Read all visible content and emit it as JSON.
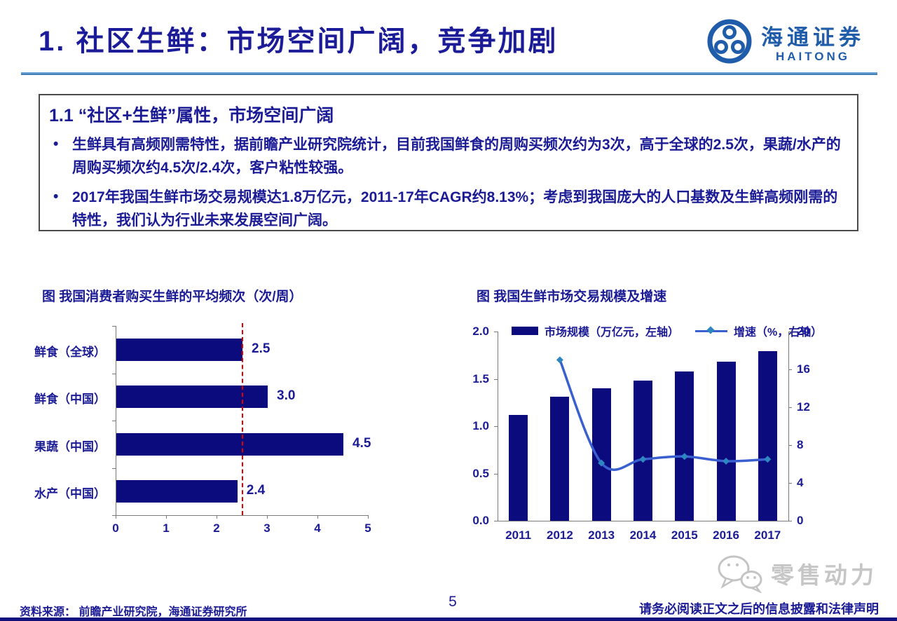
{
  "header": {
    "title": "1. 社区生鲜：市场空间广阔，竞争加剧",
    "logo": {
      "cn": "海通证券",
      "en": "HAITONG"
    }
  },
  "summary_box": {
    "heading": "1.1 “社区+生鲜”属性，市场空间广阔",
    "bullets": [
      "生鲜具有高频刚需特性，据前瞻产业研究院统计，目前我国鲜食的周购买频次约为3次，高于全球的2.5次，果蔬/水产的周购买频次约4.5次/2.4次，客户粘性较强。",
      "2017年我国生鲜市场交易规模达1.8万亿元，2011-17年CAGR约8.13%；考虑到我国庞大的人口基数及生鲜高频刚需的特性，我们认为行业未来发展空间广阔。"
    ]
  },
  "chart_data": [
    {
      "type": "bar",
      "orientation": "horizontal",
      "title": "图  我国消费者购买生鲜的平均频次（次/周）",
      "categories": [
        "鲜食（全球）",
        "鲜食（中国）",
        "果蔬（中国）",
        "水产（中国）"
      ],
      "values": [
        2.5,
        3.0,
        4.5,
        2.4
      ],
      "xlim": [
        0,
        5
      ],
      "xticks": [
        0,
        1,
        2,
        3,
        4,
        5
      ],
      "refline": {
        "value": 2.5,
        "color": "#E00000",
        "style": "dashed"
      },
      "bar_color": "#0B0B7D",
      "grid": false,
      "data_labels": true
    },
    {
      "type": "bar+line",
      "title": "图  我国生鲜市场交易规模及增速",
      "categories": [
        "2011",
        "2012",
        "2013",
        "2014",
        "2015",
        "2016",
        "2017"
      ],
      "series": [
        {
          "name": "市场规模（万亿元，左轴）",
          "type": "bar",
          "axis": "left",
          "values": [
            1.12,
            1.31,
            1.4,
            1.48,
            1.58,
            1.68,
            1.79
          ],
          "color": "#0B0B7D"
        },
        {
          "name": "增速（%，右轴）",
          "type": "line",
          "axis": "right",
          "values": [
            null,
            17.0,
            6.1,
            6.5,
            6.8,
            6.3,
            6.5
          ],
          "color": "#3A5FD0",
          "marker": "diamond",
          "marker_color": "#2E86C1"
        }
      ],
      "left_axis": {
        "range": [
          0,
          2
        ],
        "ticks": [
          "0.0",
          "0.5",
          "1.0",
          "1.5",
          "2.0"
        ]
      },
      "right_axis": {
        "range": [
          0,
          20
        ],
        "ticks": [
          "0",
          "4",
          "8",
          "12",
          "16",
          "20"
        ]
      },
      "legend_position": "top",
      "grid": false
    }
  ],
  "footer": {
    "source": "资料来源：  前瞻产业研究院，海通证券研究所",
    "page_number": "5",
    "watermark": "零售动力",
    "disclaimer": "请务必阅读正文之后的信息披露和法律声明"
  },
  "colors": {
    "title_navy": "#1C1C99",
    "body_navy": "#1B1B96",
    "bar_navy": "#0B0B7D",
    "line_blue": "#3A5FD0",
    "marker_teal": "#2E86C1",
    "refline_red": "#E00000",
    "underline_blue": "#2E6DA8",
    "logo_blue": "#1F5CA9",
    "watermark_gray": "#C6C6C6",
    "bottom_bar_navy": "#10107E"
  }
}
